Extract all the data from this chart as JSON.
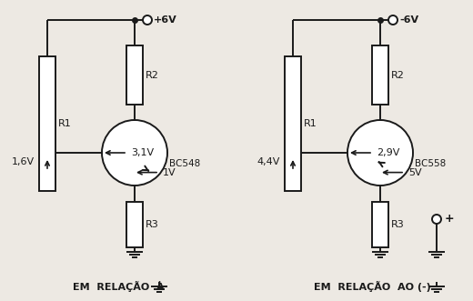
{
  "bg_color": "#ede9e3",
  "line_color": "#1a1a1a",
  "left_circuit": {
    "supply_label": "+6V",
    "transistor": "BC548",
    "v_base": "3,1V",
    "v_emitter_left": "1,6V",
    "v_emitter": "1V",
    "r_labels": [
      "R1",
      "R2",
      "R3"
    ],
    "ground_label": "EM  RELAÇÃO  À"
  },
  "right_circuit": {
    "supply_label": "-6V",
    "transistor": "BC558",
    "v_base": "2,9V",
    "v_emitter_left": "4,4V",
    "v_emitter": "5V",
    "r_labels": [
      "R1",
      "R2",
      "R3"
    ],
    "ground_label": "EM  RELAÇÃO  AO (-)",
    "plus_label": "+"
  }
}
